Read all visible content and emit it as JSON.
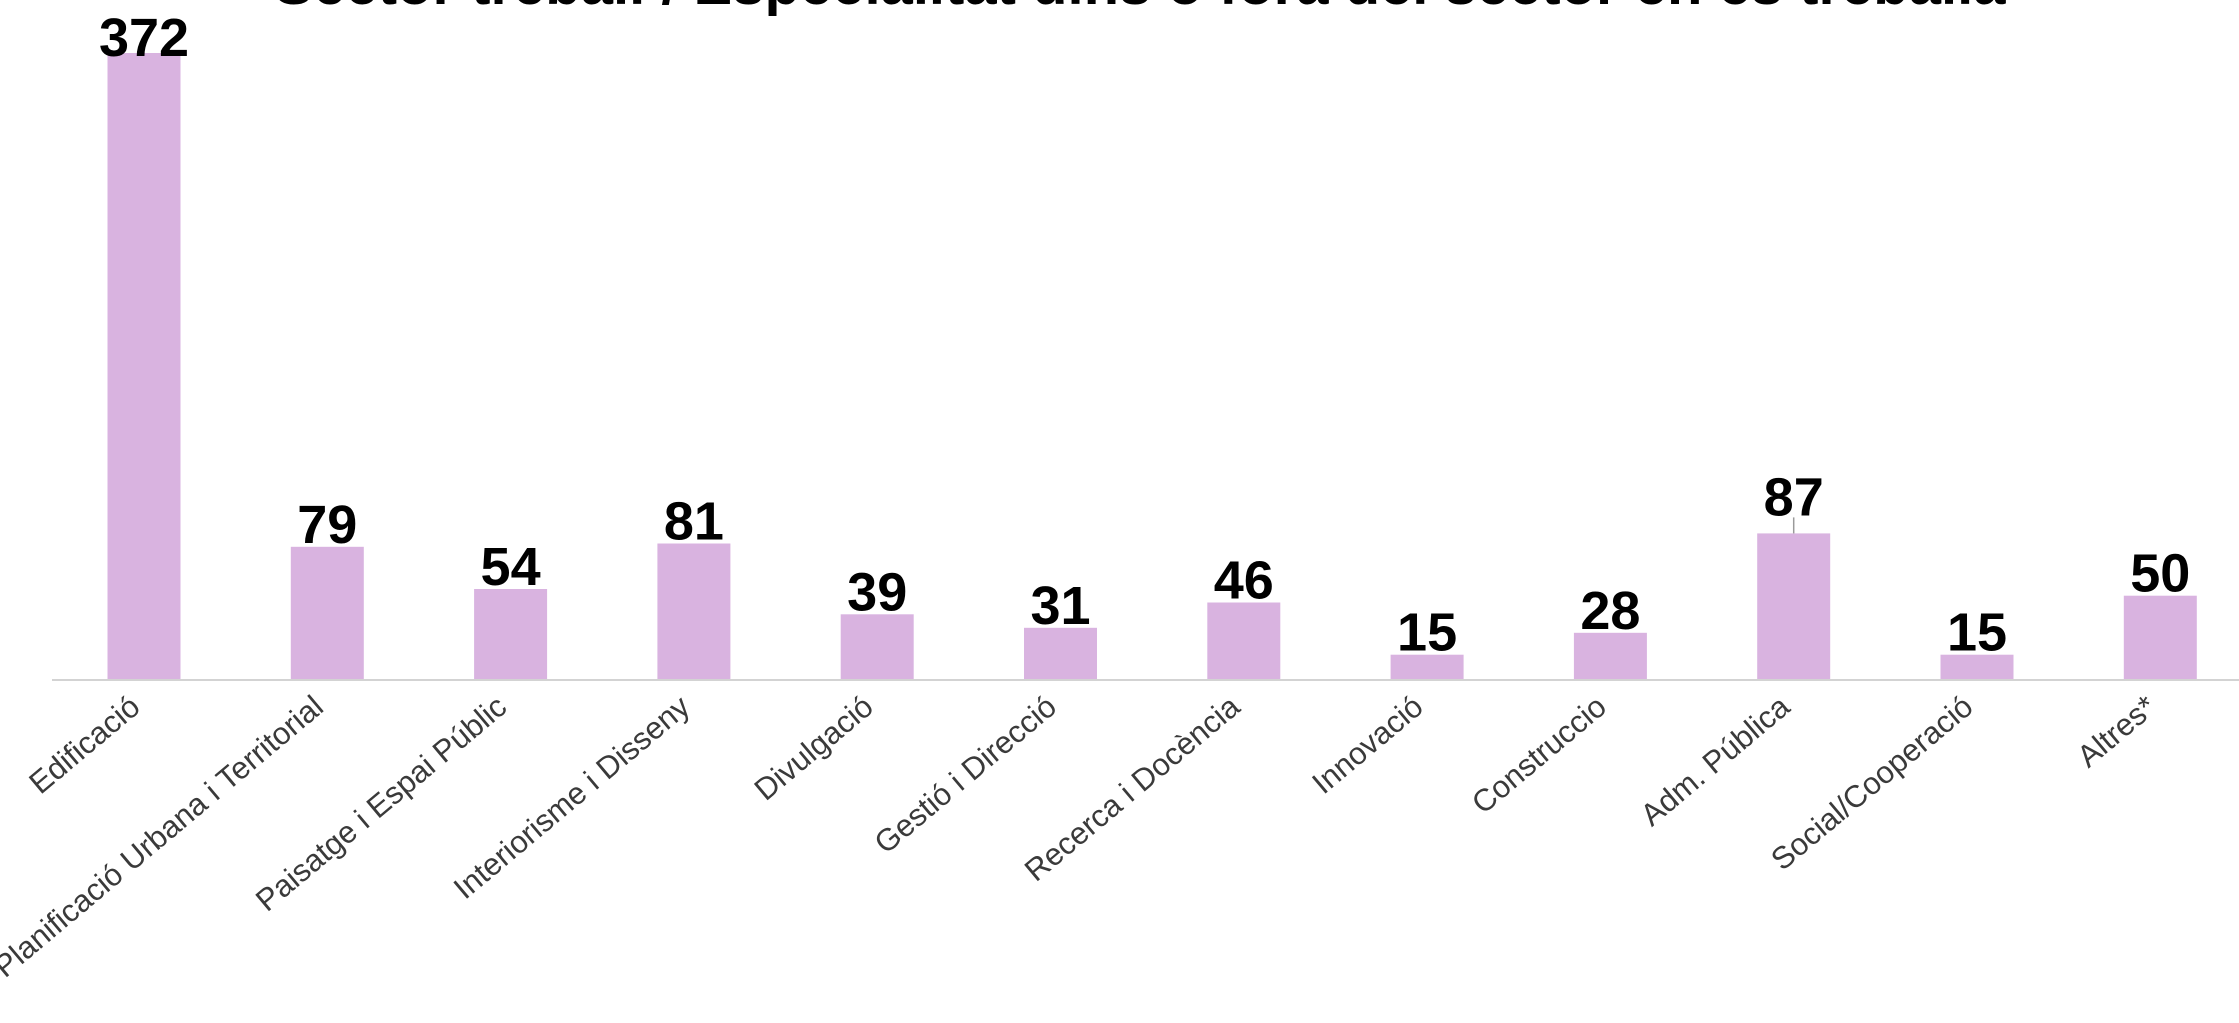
{
  "chart_data": {
    "type": "bar",
    "title": "Sector treball / Especialitat dins o fora del sector en es treballa",
    "xlabel": "",
    "ylabel": "",
    "categories": [
      "Edificació",
      "Planificació Urbana i Territorial",
      "Paisatge i Espai Públic",
      "Interiorisme i Disseny",
      "Divulgació",
      "Gestió i Direcció",
      "Recerca i Docència",
      "Innovació",
      "Construccio",
      "Adm. Pública",
      "Social/Cooperació",
      "Altres*"
    ],
    "values": [
      372,
      79,
      54,
      81,
      39,
      31,
      46,
      15,
      28,
      87,
      15,
      50
    ],
    "ylim": [
      0,
      372
    ],
    "grid": false,
    "legend": "none",
    "colors": {
      "bar": "#d9b3e0",
      "axis": "#d3d3d3",
      "label": "#000000",
      "category": "#3a3a3a",
      "leader_line": "#9a9a9a"
    }
  }
}
